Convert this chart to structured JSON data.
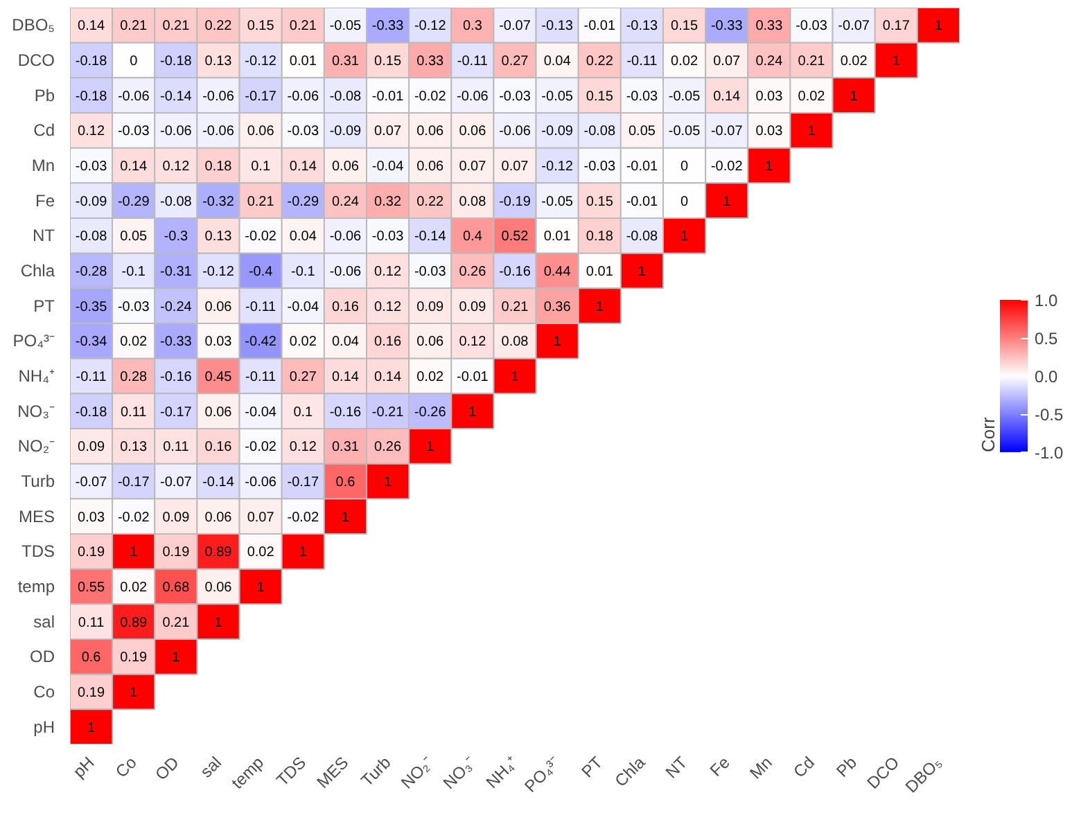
{
  "chart_data": {
    "type": "heatmap",
    "clabel": "Corr",
    "data_labels": true,
    "grid": false,
    "categories": [
      "pH",
      "Co",
      "OD",
      "sal",
      "temp",
      "TDS",
      "MES",
      "Turb",
      "NO₂⁻",
      "NO₃⁻",
      "NH₄⁺",
      "PO₄³⁻",
      "PT",
      "Chla",
      "NT",
      "Fe",
      "Mn",
      "Cd",
      "Pb",
      "DCO",
      "DBO₅"
    ],
    "y_categories": [
      "DBO₅",
      "DCO",
      "Pb",
      "Cd",
      "Mn",
      "Fe",
      "NT",
      "Chla",
      "PT",
      "PO₄³⁻",
      "NH₄⁺",
      "NO₃⁻",
      "NO₂⁻",
      "Turb",
      "MES",
      "TDS",
      "temp",
      "sal",
      "OD",
      "Co",
      "pH"
    ],
    "cells": [
      [
        0.14,
        0.21,
        0.21,
        0.22,
        0.15,
        0.21,
        -0.05,
        -0.33,
        -0.12,
        0.3,
        -0.07,
        -0.13,
        -0.01,
        -0.13,
        0.15,
        -0.33,
        0.33,
        -0.03,
        -0.07,
        0.17,
        1
      ],
      [
        -0.18,
        0,
        -0.18,
        0.13,
        -0.12,
        0.01,
        0.31,
        0.15,
        0.33,
        -0.11,
        0.27,
        0.04,
        0.22,
        -0.11,
        0.02,
        0.07,
        0.24,
        0.21,
        0.02,
        1,
        null
      ],
      [
        -0.18,
        -0.06,
        -0.14,
        -0.06,
        -0.17,
        -0.06,
        -0.08,
        -0.01,
        -0.02,
        -0.06,
        -0.03,
        -0.05,
        0.15,
        -0.03,
        -0.05,
        0.14,
        0.03,
        0.02,
        1,
        null,
        null
      ],
      [
        0.12,
        -0.03,
        -0.06,
        -0.06,
        0.06,
        -0.03,
        -0.09,
        0.07,
        0.06,
        0.06,
        -0.06,
        -0.09,
        -0.08,
        0.05,
        -0.05,
        -0.07,
        0.03,
        1,
        null,
        null,
        null
      ],
      [
        -0.03,
        0.14,
        0.12,
        0.18,
        0.1,
        0.14,
        0.06,
        -0.04,
        0.06,
        0.07,
        0.07,
        -0.12,
        -0.03,
        -0.01,
        0,
        -0.02,
        1,
        null,
        null,
        null,
        null
      ],
      [
        -0.09,
        -0.29,
        -0.08,
        -0.32,
        0.21,
        -0.29,
        0.24,
        0.32,
        0.22,
        0.08,
        -0.19,
        -0.05,
        0.15,
        -0.01,
        0,
        1,
        null,
        null,
        null,
        null,
        null
      ],
      [
        -0.08,
        0.05,
        -0.3,
        0.13,
        -0.02,
        0.04,
        -0.06,
        -0.03,
        -0.14,
        0.4,
        0.52,
        0.01,
        0.18,
        -0.08,
        1,
        null,
        null,
        null,
        null,
        null,
        null
      ],
      [
        -0.28,
        -0.1,
        -0.31,
        -0.12,
        -0.4,
        -0.1,
        -0.06,
        0.12,
        -0.03,
        0.26,
        -0.16,
        0.44,
        0.01,
        1,
        null,
        null,
        null,
        null,
        null,
        null,
        null
      ],
      [
        -0.35,
        -0.03,
        -0.24,
        0.06,
        -0.11,
        -0.04,
        0.16,
        0.12,
        0.09,
        0.09,
        0.21,
        0.36,
        1,
        null,
        null,
        null,
        null,
        null,
        null,
        null,
        null
      ],
      [
        -0.34,
        0.02,
        -0.33,
        0.03,
        -0.42,
        0.02,
        0.04,
        0.16,
        0.06,
        0.12,
        0.08,
        1,
        null,
        null,
        null,
        null,
        null,
        null,
        null,
        null,
        null
      ],
      [
        -0.11,
        0.28,
        -0.16,
        0.45,
        -0.11,
        0.27,
        0.14,
        0.14,
        0.02,
        -0.01,
        1,
        null,
        null,
        null,
        null,
        null,
        null,
        null,
        null,
        null,
        null
      ],
      [
        -0.18,
        0.11,
        -0.17,
        0.06,
        -0.04,
        0.1,
        -0.16,
        -0.21,
        -0.26,
        1,
        null,
        null,
        null,
        null,
        null,
        null,
        null,
        null,
        null,
        null,
        null
      ],
      [
        0.09,
        0.13,
        0.11,
        0.16,
        -0.02,
        0.12,
        0.31,
        0.26,
        1,
        null,
        null,
        null,
        null,
        null,
        null,
        null,
        null,
        null,
        null,
        null,
        null
      ],
      [
        -0.07,
        -0.17,
        -0.07,
        -0.14,
        -0.06,
        -0.17,
        0.6,
        1,
        null,
        null,
        null,
        null,
        null,
        null,
        null,
        null,
        null,
        null,
        null,
        null,
        null
      ],
      [
        0.03,
        -0.02,
        0.09,
        0.06,
        0.07,
        -0.02,
        1,
        null,
        null,
        null,
        null,
        null,
        null,
        null,
        null,
        null,
        null,
        null,
        null,
        null,
        null
      ],
      [
        0.19,
        1,
        0.19,
        0.89,
        0.02,
        1,
        null,
        null,
        null,
        null,
        null,
        null,
        null,
        null,
        null,
        null,
        null,
        null,
        null,
        null,
        null
      ],
      [
        0.55,
        0.02,
        0.68,
        0.06,
        1,
        null,
        null,
        null,
        null,
        null,
        null,
        null,
        null,
        null,
        null,
        null,
        null,
        null,
        null,
        null,
        null
      ],
      [
        0.11,
        0.89,
        0.21,
        1,
        null,
        null,
        null,
        null,
        null,
        null,
        null,
        null,
        null,
        null,
        null,
        null,
        null,
        null,
        null,
        null,
        null
      ],
      [
        0.6,
        0.19,
        1,
        null,
        null,
        null,
        null,
        null,
        null,
        null,
        null,
        null,
        null,
        null,
        null,
        null,
        null,
        null,
        null,
        null,
        null
      ],
      [
        0.19,
        1,
        null,
        null,
        null,
        null,
        null,
        null,
        null,
        null,
        null,
        null,
        null,
        null,
        null,
        null,
        null,
        null,
        null,
        null,
        null
      ],
      [
        1,
        null,
        null,
        null,
        null,
        null,
        null,
        null,
        null,
        null,
        null,
        null,
        null,
        null,
        null,
        null,
        null,
        null,
        null,
        null,
        null
      ]
    ],
    "clim": [
      -1,
      1
    ],
    "cticks": [
      {
        "value": -1,
        "label": "-1.0"
      },
      {
        "value": -0.5,
        "label": "-0.5"
      },
      {
        "value": 0,
        "label": "0.0"
      },
      {
        "value": 0.5,
        "label": "0.5"
      },
      {
        "value": 1,
        "label": "1.0"
      }
    ]
  }
}
